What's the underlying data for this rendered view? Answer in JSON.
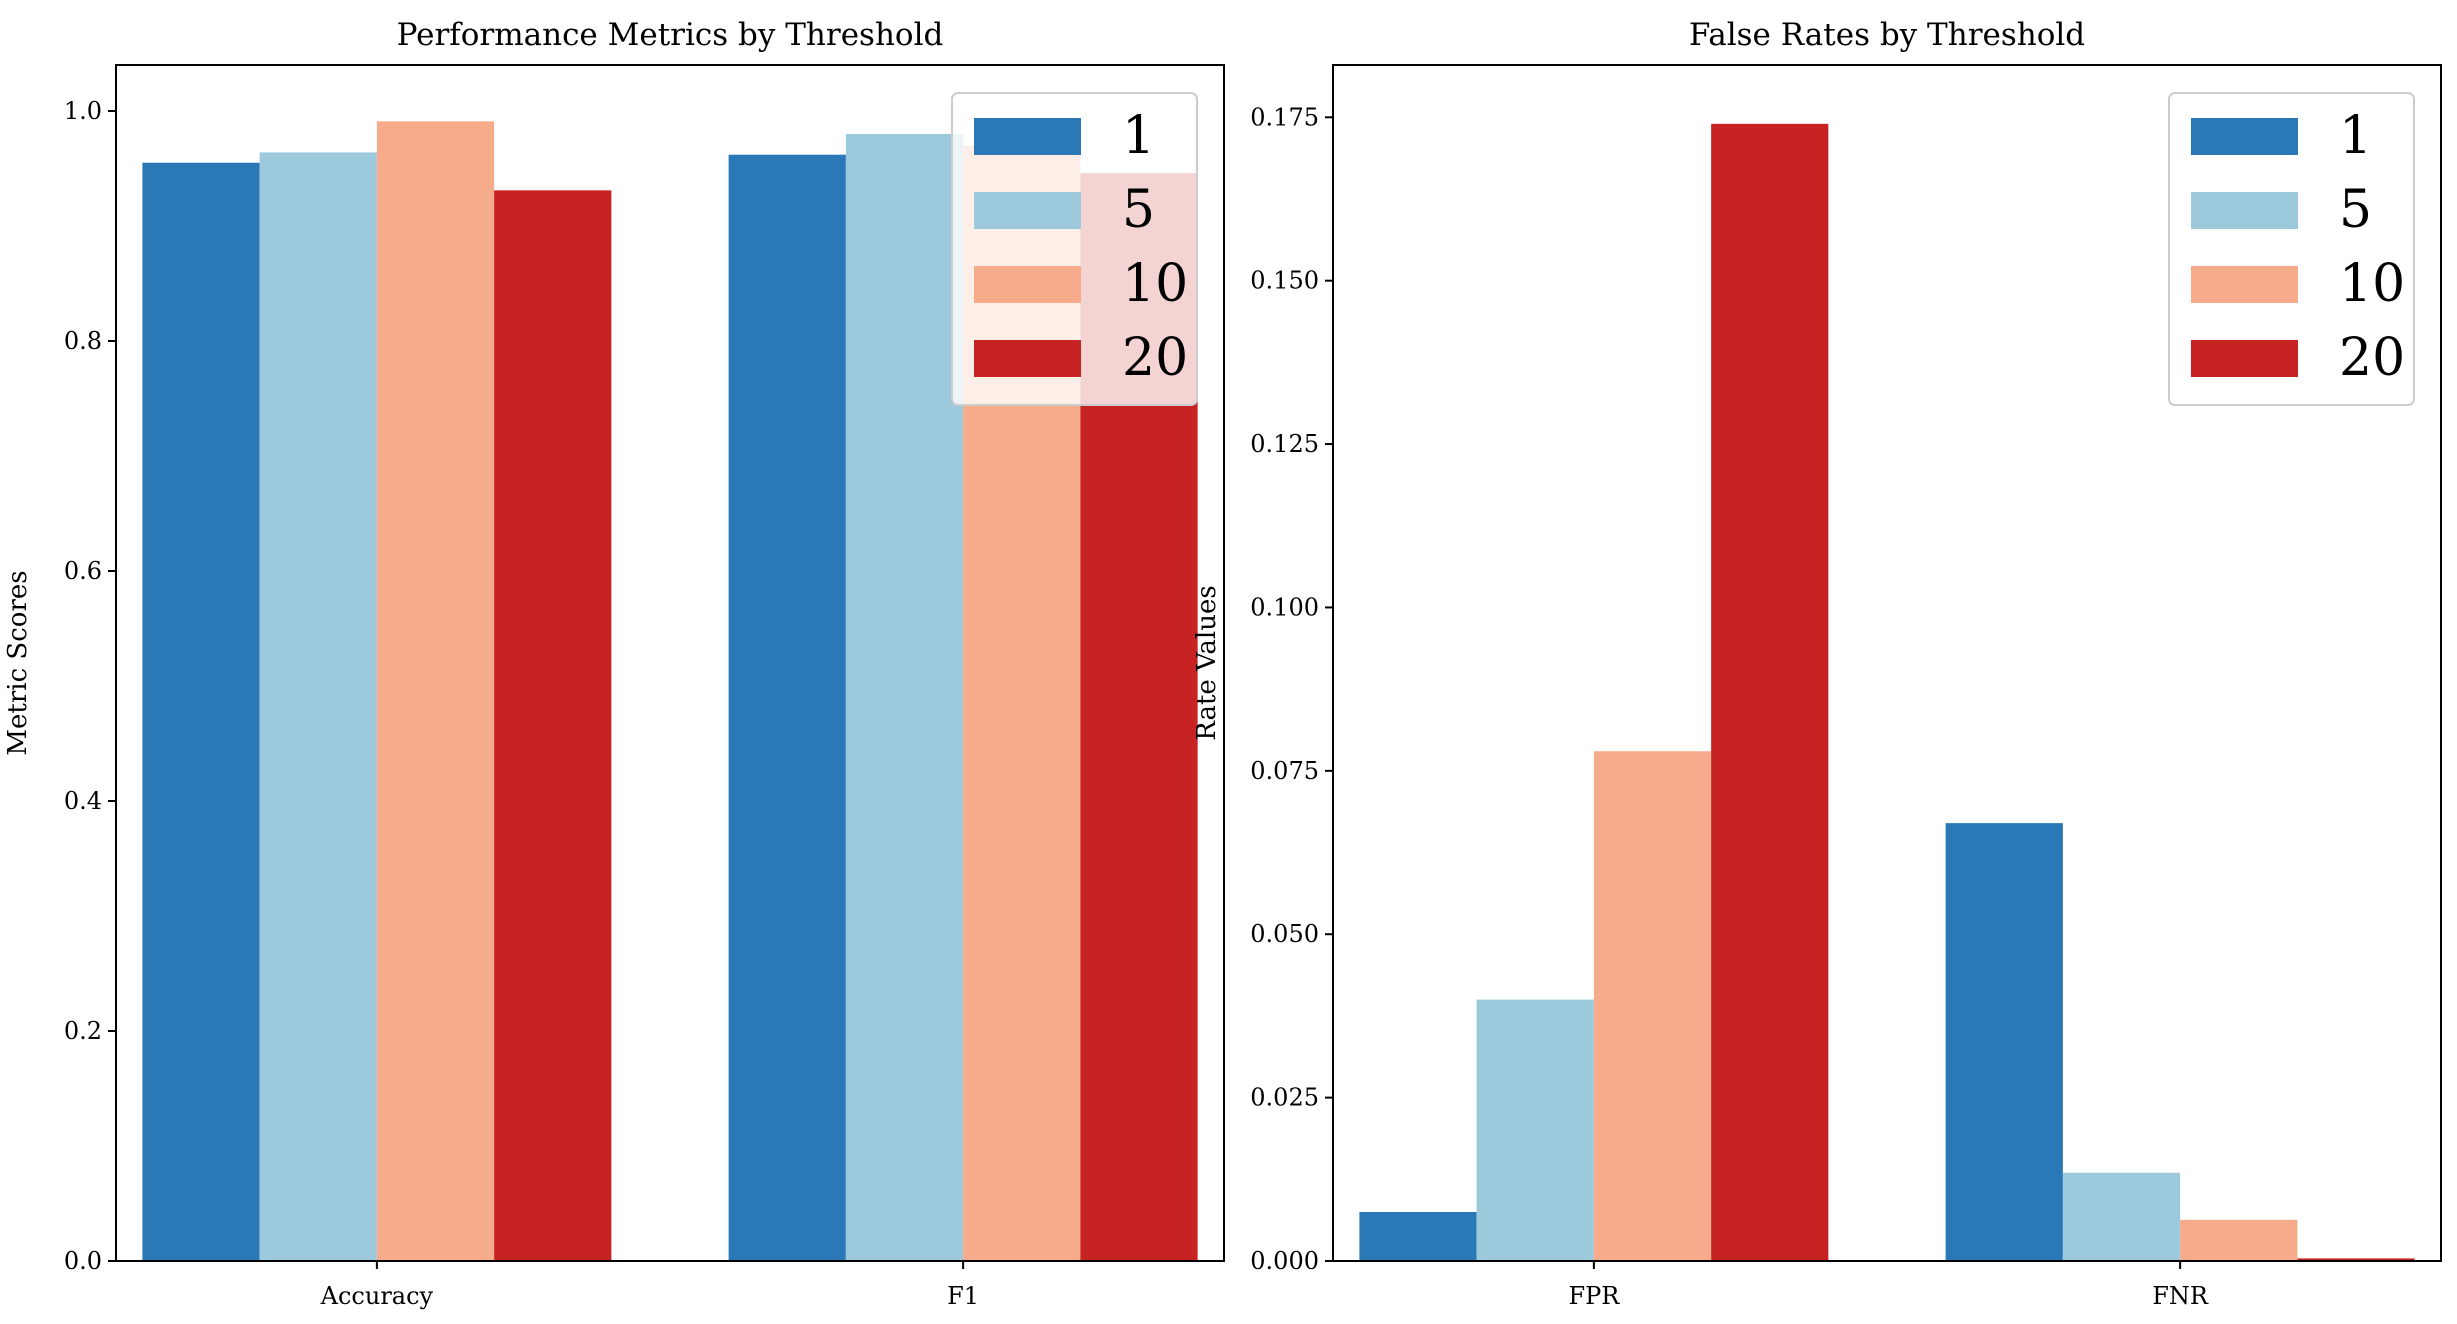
{
  "chart_data": [
    {
      "type": "bar",
      "title": "Performance Metrics by Threshold",
      "xlabel": "",
      "ylabel": "Metric Scores",
      "categories": [
        "Accuracy",
        "F1"
      ],
      "ylim": [
        0,
        1.04
      ],
      "yticks": [
        "0.0",
        "0.2",
        "0.4",
        "0.6",
        "0.8",
        "1.0"
      ],
      "legend_position": "top-right",
      "series": [
        {
          "name": "1",
          "color": "#2a78b6",
          "values": [
            0.955,
            0.962
          ]
        },
        {
          "name": "5",
          "color": "#9ccadc",
          "values": [
            0.964,
            0.98
          ]
        },
        {
          "name": "10",
          "color": "#f6ab8a",
          "values": [
            0.991,
            0.97
          ]
        },
        {
          "name": "20",
          "color": "#c82323",
          "values": [
            0.931,
            0.946
          ]
        }
      ]
    },
    {
      "type": "bar",
      "title": "False Rates by Threshold",
      "xlabel": "",
      "ylabel": "Rate Values",
      "categories": [
        "FPR",
        "FNR"
      ],
      "ylim": [
        0,
        0.183
      ],
      "yticks": [
        "0.000",
        "0.025",
        "0.050",
        "0.075",
        "0.100",
        "0.125",
        "0.150",
        "0.175"
      ],
      "legend_position": "top-right",
      "series": [
        {
          "name": "1",
          "color": "#2a78b6",
          "values": [
            0.0075,
            0.067
          ]
        },
        {
          "name": "5",
          "color": "#9ccadc",
          "values": [
            0.04,
            0.0135
          ]
        },
        {
          "name": "10",
          "color": "#f6ab8a",
          "values": [
            0.078,
            0.0063
          ]
        },
        {
          "name": "20",
          "color": "#c82323",
          "values": [
            0.174,
            0.0004
          ]
        }
      ]
    }
  ]
}
